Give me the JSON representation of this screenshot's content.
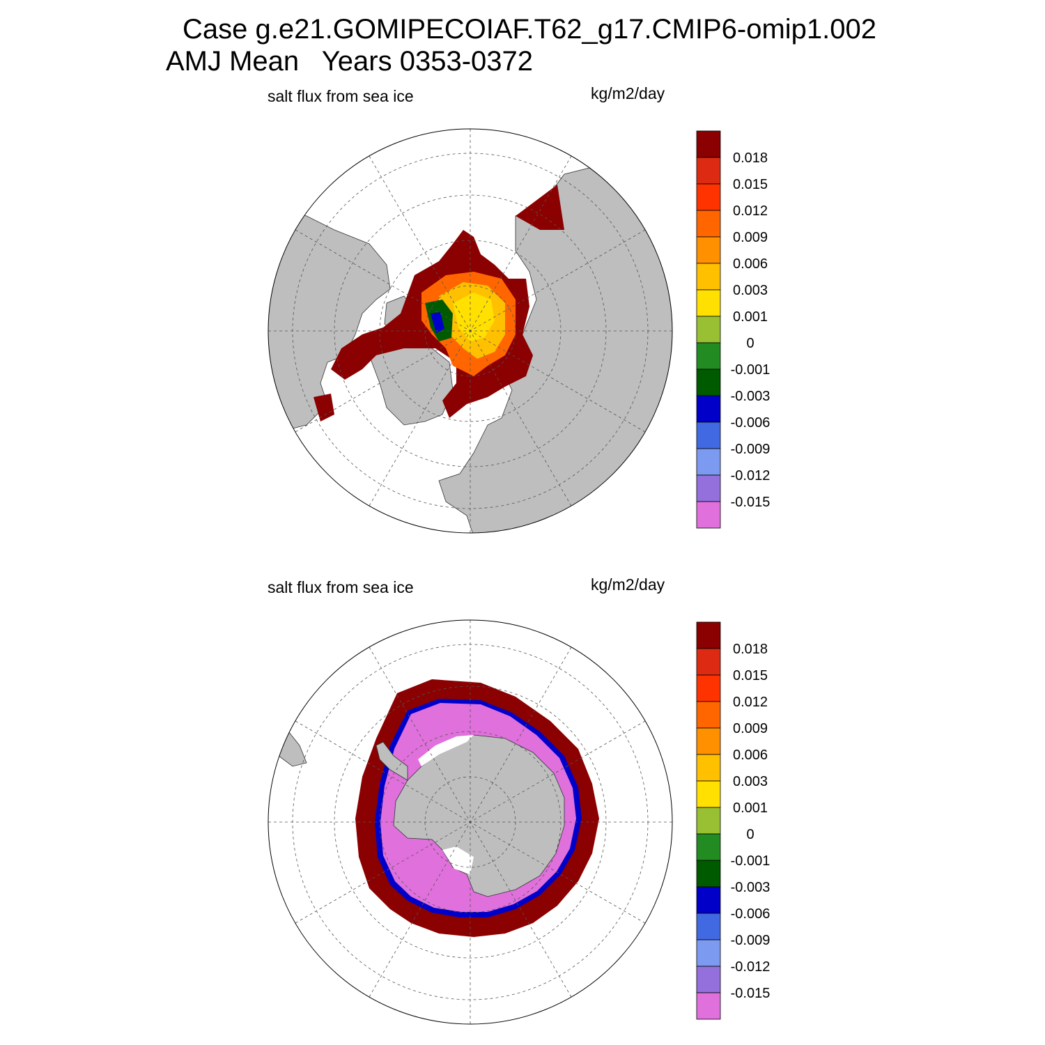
{
  "title": {
    "line1": "Case g.e21.GOMIPECOIAF.T62_g17.CMIP6-omip1.002",
    "line2": "AMJ Mean   Years 0353-0372"
  },
  "colors": {
    "land": "#bebebe",
    "ocean": "#ffffff",
    "grid": "#555555"
  },
  "colorbar": {
    "colors": [
      "#8b0000",
      "#dd2a12",
      "#ff3300",
      "#ff6600",
      "#ff9000",
      "#ffc000",
      "#ffe000",
      "#99c032",
      "#228b22",
      "#005a00",
      "#0000c8",
      "#4169e1",
      "#7b9af0",
      "#9370db",
      "#e070dc"
    ],
    "labels": [
      "0.018",
      "0.015",
      "0.012",
      "0.009",
      "0.006",
      "0.003",
      "0.001",
      "0",
      "-0.001",
      "-0.003",
      "-0.006",
      "-0.009",
      "-0.012",
      "-0.015"
    ]
  },
  "panels": [
    {
      "hemisphere": "north",
      "label_left": "salt flux from sea ice",
      "label_right": "kg/m2/day"
    },
    {
      "hemisphere": "south",
      "label_left": "salt flux from sea ice",
      "label_right": "kg/m2/day"
    }
  ]
}
